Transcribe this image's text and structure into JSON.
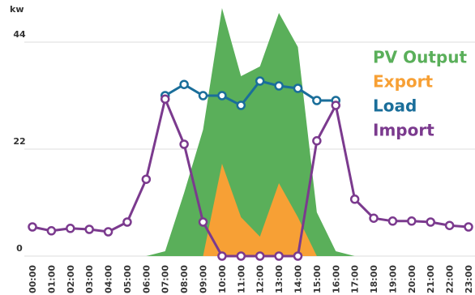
{
  "chart_data": {
    "type": "area-line",
    "y_label": "kw",
    "categories": [
      "00:00",
      "01:00",
      "02:00",
      "03:00",
      "04:00",
      "05:00",
      "06:00",
      "07:00",
      "08:00",
      "09:00",
      "10:00",
      "11:00",
      "12:00",
      "13:00",
      "14:00",
      "15:00",
      "16:00",
      "17:00",
      "18:00",
      "19:00",
      "20:00",
      "21:00",
      "22:00",
      "23:00"
    ],
    "series": [
      {
        "name": "PV Output",
        "kind": "area",
        "color": "#5aaf5a",
        "values": [
          0,
          0,
          0,
          0,
          0,
          0,
          0,
          1,
          13,
          26,
          51,
          37,
          39,
          50,
          43,
          9,
          1,
          0,
          0,
          0,
          0,
          0,
          0,
          0
        ]
      },
      {
        "name": "Export",
        "kind": "area",
        "color": "#f7a035",
        "values": [
          null,
          null,
          null,
          null,
          null,
          null,
          null,
          null,
          null,
          0,
          19,
          8,
          4,
          15,
          8,
          0,
          null,
          null,
          null,
          null,
          null,
          null,
          null,
          null
        ]
      },
      {
        "name": "Load",
        "kind": "line",
        "color": "#1a6e9a",
        "values": [
          null,
          null,
          null,
          null,
          null,
          null,
          null,
          33,
          35.3,
          33,
          33,
          31,
          36,
          35,
          34.5,
          32,
          32,
          null,
          null,
          null,
          null,
          null,
          null,
          null
        ]
      },
      {
        "name": "Import",
        "kind": "line",
        "color": "#7b3a8e",
        "values": [
          6,
          5.2,
          5.7,
          5.5,
          5,
          7,
          15.8,
          32.3,
          23,
          7,
          0,
          0,
          0,
          0,
          0,
          23.7,
          31,
          11.7,
          7.8,
          7.2,
          7.2,
          7,
          6.3,
          6
        ]
      }
    ],
    "ylim": [
      0,
      52
    ],
    "yticks": [
      0,
      22,
      44
    ],
    "grid": true
  }
}
